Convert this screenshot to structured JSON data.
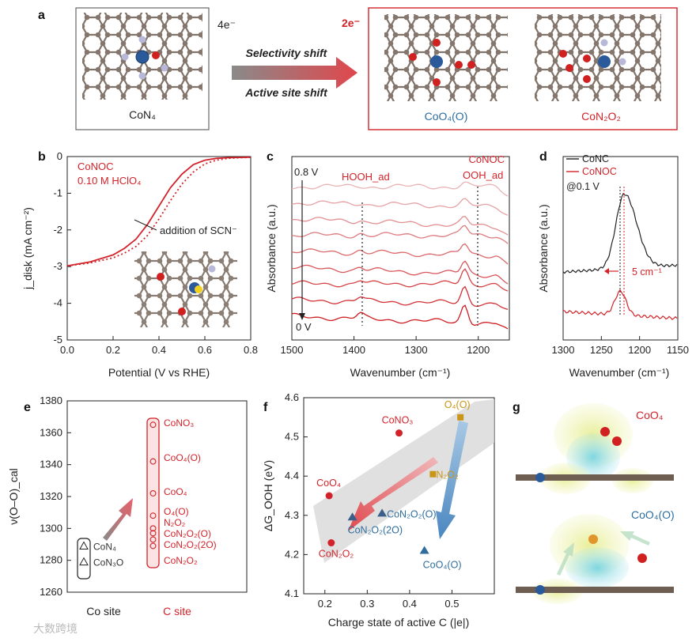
{
  "colors": {
    "red": "#d2232a",
    "blue": "#2e6d9e",
    "gold": "#c9961a",
    "navy": "#3a5f8a",
    "dark": "#222222",
    "grey": "#777777"
  },
  "panel_labels": {
    "a": "a",
    "b": "b",
    "c": "c",
    "d": "d",
    "e": "e",
    "f": "f",
    "g": "g"
  },
  "panel_a": {
    "four_e": "4e⁻",
    "two_e": "2e⁻",
    "arrow_top": "Selectivity shift",
    "arrow_bottom": "Active site shift",
    "label_con4": "CoN₄",
    "label_coo4o": "CoO₄(O)",
    "label_con2o2": "CoN₂O₂"
  },
  "panel_b": {
    "note1": "CoNOC",
    "note2": "0.10 M HClO₄",
    "annotation": "addition of SCN⁻",
    "ylabel": "j_disk (mA cm⁻²)",
    "xlabel": "Potential (V vs RHE)"
  },
  "panel_c": {
    "title": "CoNOC",
    "hoohad": "HOOH_ad",
    "oohad": "OOH_ad",
    "v_top": "0.8 V",
    "v_bottom": "0 V",
    "ylabel": "Absorbance (a.u.)",
    "xlabel": "Wavenumber (cm⁻¹)"
  },
  "panel_d": {
    "legend1": "CoNC",
    "legend2": "CoNOC",
    "at": "@0.1 V",
    "shift": "5 cm⁻¹",
    "ylabel": "Absorbance (a.u.)",
    "xlabel": "Wavenumber (cm⁻¹)"
  },
  "panel_e": {
    "ylabel": "ν(O–O)_cal",
    "xcat1": "Co site",
    "xcat2": "C site"
  },
  "panel_f": {
    "ylabel": "ΔG_OOH (eV)",
    "xlabel": "Charge state of active C (|e|)"
  },
  "panel_g": {
    "label1": "CoO₄",
    "label2": "CoO₄(O)"
  },
  "watermark": "大数跨境",
  "chart_data": [
    {
      "panel": "b",
      "type": "line",
      "title": "",
      "xlabel": "Potential (V vs RHE)",
      "ylabel": "j_disk (mA cm⁻²)",
      "xlim": [
        0,
        0.8
      ],
      "ylim": [
        -5,
        0
      ],
      "xticks": [
        "0.0",
        "0.2",
        "0.4",
        "0.6",
        "0.8"
      ],
      "yticks": [
        "0",
        "-1",
        "-2",
        "-3",
        "-4",
        "-5"
      ],
      "series": [
        {
          "name": "CoNOC",
          "style": "solid",
          "x": [
            0,
            0.1,
            0.2,
            0.25,
            0.3,
            0.35,
            0.4,
            0.45,
            0.5,
            0.55,
            0.6,
            0.65,
            0.7,
            0.8
          ],
          "y": [
            -2.98,
            -2.87,
            -2.68,
            -2.5,
            -2.25,
            -1.85,
            -1.35,
            -0.85,
            -0.48,
            -0.22,
            -0.1,
            -0.05,
            -0.03,
            -0.02
          ]
        },
        {
          "name": "addition of SCN⁻",
          "style": "dotted",
          "x": [
            0,
            0.1,
            0.2,
            0.25,
            0.3,
            0.35,
            0.4,
            0.45,
            0.5,
            0.55,
            0.6,
            0.65,
            0.7,
            0.8
          ],
          "y": [
            -2.98,
            -2.9,
            -2.76,
            -2.63,
            -2.45,
            -2.15,
            -1.7,
            -1.2,
            -0.75,
            -0.42,
            -0.2,
            -0.1,
            -0.05,
            -0.02
          ]
        }
      ]
    },
    {
      "panel": "c",
      "type": "line",
      "title": "CoNOC",
      "xlabel": "Wavenumber (cm⁻¹)",
      "ylabel": "Absorbance (a.u.)",
      "xlim": [
        1500,
        1150
      ],
      "xticks": [
        "1500",
        "1400",
        "1300",
        "1200"
      ],
      "potential_range_V": [
        0.8,
        0
      ],
      "n_spectra": 9,
      "peaks_cm-1": {
        "HOOH_ad": 1390,
        "OOH_ad": 1222
      }
    },
    {
      "panel": "d",
      "type": "line",
      "title": "",
      "xlabel": "Wavenumber (cm⁻¹)",
      "ylabel": "Absorbance (a.u.)",
      "xlim": [
        1300,
        1150
      ],
      "xticks": [
        "1300",
        "1250",
        "1200",
        "1150"
      ],
      "series": [
        {
          "name": "CoNC",
          "peak_cm-1": 1220
        },
        {
          "name": "CoNOC",
          "peak_cm-1": 1225
        }
      ],
      "peak_shift_cm-1": 5
    },
    {
      "panel": "e",
      "type": "scatter",
      "title": "",
      "xlabel": "",
      "ylabel": "ν(O–O)_cal",
      "ylim": [
        1260,
        1380
      ],
      "yticks": [
        "1260",
        "1280",
        "1300",
        "1320",
        "1340",
        "1360",
        "1380"
      ],
      "categories": [
        "Co site",
        "C site"
      ],
      "series": [
        {
          "name": "Co site",
          "marker": "triangle",
          "points": [
            {
              "label": "CoN₄",
              "y": 1289
            },
            {
              "label": "CoN₃O",
              "y": 1279
            }
          ]
        },
        {
          "name": "C site",
          "marker": "circle",
          "points": [
            {
              "label": "CoNO₃",
              "y": 1365
            },
            {
              "label": "CoO₄(O)",
              "y": 1342
            },
            {
              "label": "CoO₄",
              "y": 1322
            },
            {
              "label": "O₄(O)",
              "y": 1308
            },
            {
              "label": "N₂O₂",
              "y": 1300
            },
            {
              "label": "CoN₂O₂(O)",
              "y": 1297
            },
            {
              "label": "CoN₂O₂(2O)",
              "y": 1293
            },
            {
              "label": "CoN₂O₂",
              "y": 1289
            }
          ]
        }
      ]
    },
    {
      "panel": "f",
      "type": "scatter",
      "title": "",
      "xlabel": "Charge state of active C (|e|)",
      "ylabel": "ΔG_OOH (eV)",
      "xlim": [
        0.15,
        0.6
      ],
      "ylim": [
        4.1,
        4.6
      ],
      "xticks": [
        "0.2",
        "0.3",
        "0.4",
        "0.5"
      ],
      "yticks": [
        "4.1",
        "4.2",
        "4.3",
        "4.4",
        "4.5",
        "4.6"
      ],
      "points": [
        {
          "label": "CoNO₃",
          "x": 0.375,
          "y": 4.51,
          "color": "red",
          "marker": "circle"
        },
        {
          "label": "CoO₄",
          "x": 0.21,
          "y": 4.35,
          "color": "red",
          "marker": "circle"
        },
        {
          "label": "CoN₂O₂",
          "x": 0.215,
          "y": 4.23,
          "color": "red",
          "marker": "circle"
        },
        {
          "label": "O₄(O)",
          "x": 0.52,
          "y": 4.55,
          "color": "gold",
          "marker": "square"
        },
        {
          "label": "N₂O₂",
          "x": 0.455,
          "y": 4.405,
          "color": "gold",
          "marker": "square"
        },
        {
          "label": "CoN₂O₂(2O)",
          "x": 0.265,
          "y": 4.295,
          "color": "navy",
          "marker": "triangle"
        },
        {
          "label": "CoN₂O₂(O)",
          "x": 0.335,
          "y": 4.305,
          "color": "navy",
          "marker": "triangle"
        },
        {
          "label": "CoO₄(O)",
          "x": 0.435,
          "y": 4.21,
          "color": "blue",
          "marker": "triangle"
        }
      ]
    }
  ]
}
